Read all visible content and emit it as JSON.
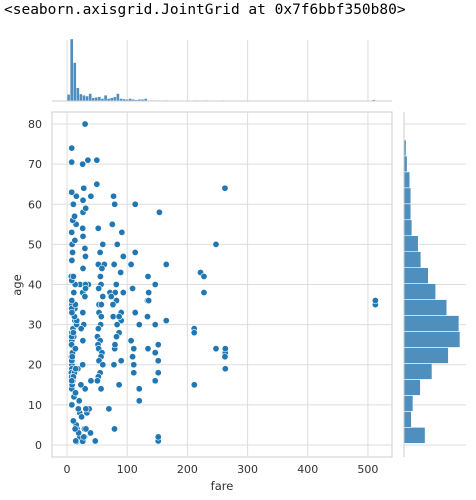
{
  "output_repr": "<seaborn.axisgrid.JointGrid at 0x7f6bbf350b80>",
  "chart_data": {
    "type": "scatter",
    "xlabel": "fare",
    "ylabel": "age",
    "xlim": [
      -25,
      540
    ],
    "ylim": [
      -3,
      83
    ],
    "xticks": [
      0,
      100,
      200,
      300,
      400,
      500
    ],
    "yticks": [
      0,
      10,
      20,
      30,
      40,
      50,
      60,
      70,
      80
    ],
    "grid": true,
    "marker_color": "#1f77b4",
    "bar_color": "#4f8fbe",
    "points": [
      [
        7.25,
        22
      ],
      [
        71.28,
        38
      ],
      [
        7.93,
        26
      ],
      [
        53.1,
        35
      ],
      [
        8.05,
        35
      ],
      [
        51.86,
        54
      ],
      [
        21.08,
        2
      ],
      [
        11.13,
        27
      ],
      [
        30.07,
        14
      ],
      [
        16.7,
        4
      ],
      [
        26.55,
        58
      ],
      [
        8.05,
        20
      ],
      [
        31.27,
        39
      ],
      [
        7.85,
        14
      ],
      [
        16,
        55
      ],
      [
        29.13,
        2
      ],
      [
        13,
        31
      ],
      [
        18,
        19
      ],
      [
        7.23,
        18
      ],
      [
        26,
        38
      ],
      [
        8.03,
        19
      ],
      [
        13,
        34
      ],
      [
        8.46,
        15
      ],
      [
        21.68,
        40
      ],
      [
        7.9,
        28
      ],
      [
        263,
        19
      ],
      [
        263,
        23
      ],
      [
        263,
        24
      ],
      [
        7.05,
        42
      ],
      [
        146.52,
        40
      ],
      [
        7.75,
        21
      ],
      [
        82.17,
        36
      ],
      [
        52,
        45
      ],
      [
        7.23,
        18
      ],
      [
        61.98,
        45
      ],
      [
        35.5,
        40
      ],
      [
        27.72,
        30
      ],
      [
        80,
        38
      ],
      [
        15.5,
        62
      ],
      [
        30.5,
        40
      ],
      [
        76.73,
        32
      ],
      [
        73.5,
        37
      ],
      [
        79.2,
        24
      ],
      [
        86.5,
        15
      ],
      [
        86.5,
        28
      ],
      [
        90,
        33
      ],
      [
        90,
        31
      ],
      [
        93.5,
        47
      ],
      [
        106.43,
        45
      ],
      [
        108.9,
        39
      ],
      [
        110.88,
        24
      ],
      [
        110.88,
        20
      ],
      [
        113.28,
        60
      ],
      [
        113.28,
        48
      ],
      [
        120,
        11
      ],
      [
        120,
        14
      ],
      [
        133.65,
        36
      ],
      [
        134.5,
        42
      ],
      [
        135.63,
        36
      ],
      [
        146.52,
        23
      ],
      [
        151.55,
        1
      ],
      [
        151.55,
        2
      ],
      [
        151.55,
        25
      ],
      [
        151.55,
        18
      ],
      [
        153.46,
        58
      ],
      [
        153.46,
        58
      ],
      [
        164.87,
        45
      ],
      [
        164.87,
        31
      ],
      [
        211.34,
        29
      ],
      [
        211.34,
        28
      ],
      [
        211.5,
        15
      ],
      [
        221.78,
        43
      ],
      [
        227.53,
        38
      ],
      [
        227.53,
        42
      ],
      [
        247.52,
        50
      ],
      [
        247.52,
        24
      ],
      [
        262.38,
        22
      ],
      [
        262.38,
        64
      ],
      [
        512.33,
        35
      ],
      [
        512.33,
        36
      ],
      [
        15.5,
        0.8
      ],
      [
        29,
        4
      ],
      [
        26,
        0.9
      ],
      [
        19.26,
        3
      ],
      [
        14.45,
        1
      ],
      [
        39,
        3
      ],
      [
        31.39,
        4
      ],
      [
        27.9,
        2
      ],
      [
        46.9,
        1
      ],
      [
        21.08,
        8
      ],
      [
        15.25,
        5
      ],
      [
        13.42,
        4
      ],
      [
        7.25,
        10
      ],
      [
        33,
        8
      ],
      [
        36.75,
        9
      ],
      [
        24.15,
        7
      ],
      [
        9.5,
        16
      ],
      [
        11.5,
        12
      ],
      [
        14.5,
        13
      ],
      [
        10.5,
        6
      ],
      [
        18.75,
        9
      ],
      [
        20.25,
        11
      ],
      [
        7.75,
        17
      ],
      [
        31.28,
        9
      ],
      [
        69.55,
        9
      ],
      [
        8.05,
        10
      ],
      [
        14.11,
        13
      ],
      [
        23,
        15
      ],
      [
        12.28,
        18
      ],
      [
        10.52,
        17
      ],
      [
        7.8,
        16
      ],
      [
        39.69,
        16
      ],
      [
        26,
        20
      ],
      [
        7.88,
        21
      ],
      [
        14.45,
        19
      ],
      [
        9,
        23
      ],
      [
        8.66,
        22
      ],
      [
        7.55,
        25
      ],
      [
        13.86,
        24
      ],
      [
        26.29,
        26
      ],
      [
        7.73,
        27
      ],
      [
        9.84,
        29
      ],
      [
        10.46,
        28
      ],
      [
        15.85,
        30
      ],
      [
        16.1,
        31
      ],
      [
        23.45,
        29
      ],
      [
        26.25,
        33
      ],
      [
        12.35,
        32
      ],
      [
        7.77,
        34
      ],
      [
        8.11,
        33
      ],
      [
        13.79,
        35
      ],
      [
        7.9,
        36
      ],
      [
        29.7,
        37
      ],
      [
        11.24,
        38
      ],
      [
        30.7,
        39
      ],
      [
        13.5,
        40
      ],
      [
        7.75,
        41
      ],
      [
        10.5,
        42
      ],
      [
        26.55,
        44
      ],
      [
        8.05,
        46
      ],
      [
        30.6,
        47
      ],
      [
        9.22,
        48
      ],
      [
        29.7,
        49
      ],
      [
        8.38,
        50
      ],
      [
        13,
        51
      ],
      [
        26.55,
        52
      ],
      [
        7.75,
        53
      ],
      [
        26,
        54
      ],
      [
        15.1,
        55
      ],
      [
        9.5,
        56
      ],
      [
        12.47,
        57
      ],
      [
        31,
        59
      ],
      [
        10.5,
        60
      ],
      [
        26.55,
        61
      ],
      [
        39.6,
        62
      ],
      [
        7.75,
        63
      ],
      [
        27.72,
        64
      ],
      [
        49.5,
        65
      ],
      [
        25.93,
        70
      ],
      [
        7.75,
        70.5
      ],
      [
        34.65,
        71
      ],
      [
        49.5,
        71
      ],
      [
        7.78,
        74
      ],
      [
        30,
        80
      ],
      [
        59.4,
        50
      ],
      [
        55,
        48
      ],
      [
        57.98,
        44
      ],
      [
        55.44,
        42
      ],
      [
        56.5,
        40
      ],
      [
        52.55,
        39
      ],
      [
        59.4,
        37
      ],
      [
        57,
        35
      ],
      [
        53.1,
        33
      ],
      [
        56.93,
        32
      ],
      [
        55.9,
        30
      ],
      [
        52,
        29
      ],
      [
        50.5,
        27
      ],
      [
        55,
        26
      ],
      [
        51.48,
        25
      ],
      [
        52.55,
        24
      ],
      [
        57.98,
        23
      ],
      [
        56.5,
        22
      ],
      [
        53.1,
        21
      ],
      [
        59.4,
        20
      ],
      [
        55,
        18
      ],
      [
        52,
        17
      ],
      [
        50.5,
        16
      ],
      [
        56.5,
        14
      ],
      [
        78.85,
        4
      ],
      [
        77.96,
        20
      ],
      [
        79.65,
        25
      ],
      [
        83.16,
        30
      ],
      [
        76.29,
        35
      ],
      [
        81.86,
        40
      ],
      [
        78.27,
        45
      ],
      [
        83.48,
        50
      ],
      [
        75.25,
        55
      ],
      [
        79.2,
        60
      ],
      [
        77.29,
        62
      ],
      [
        82.17,
        27
      ],
      [
        90,
        21
      ],
      [
        86.5,
        32
      ],
      [
        93.5,
        38
      ],
      [
        89.1,
        43
      ],
      [
        91.08,
        53
      ],
      [
        108.9,
        22
      ],
      [
        106.43,
        26
      ],
      [
        110.88,
        18
      ],
      [
        113.28,
        33
      ],
      [
        120,
        30
      ],
      [
        133.65,
        32
      ],
      [
        135.63,
        38
      ],
      [
        134.5,
        24
      ],
      [
        146.52,
        16
      ],
      [
        146.52,
        30
      ],
      [
        151.55,
        21
      ]
    ],
    "top_hist": {
      "bin_start": 0,
      "bin_width": 5.123,
      "counts": [
        16,
        150,
        93,
        32,
        17,
        14,
        12,
        18,
        8,
        9,
        10,
        6,
        14,
        6,
        8,
        10,
        18,
        6,
        5,
        4,
        6,
        4,
        3,
        4,
        4,
        6,
        2,
        2,
        2,
        2,
        1,
        2,
        2,
        0,
        1,
        0,
        1,
        0,
        0,
        0,
        0,
        2,
        2,
        1,
        2,
        2,
        0,
        0,
        0,
        0,
        2,
        0,
        0,
        0,
        0,
        0,
        0,
        0,
        0,
        0,
        0,
        0,
        0,
        0,
        0,
        0,
        0,
        0,
        0,
        0,
        0,
        0,
        0,
        0,
        0,
        0,
        0,
        0,
        0,
        0,
        0,
        0,
        0,
        0,
        0,
        0,
        0,
        0,
        0,
        0,
        0,
        0,
        0,
        0,
        0,
        0,
        0,
        0,
        0,
        3
      ]
    },
    "right_hist": {
      "bin_start": 0.42,
      "bin_width": 3.98,
      "counts": [
        40,
        14,
        17,
        31,
        53,
        84,
        106,
        104,
        81,
        60,
        46,
        32,
        27,
        15,
        13,
        13,
        11,
        6,
        4,
        1
      ]
    }
  }
}
